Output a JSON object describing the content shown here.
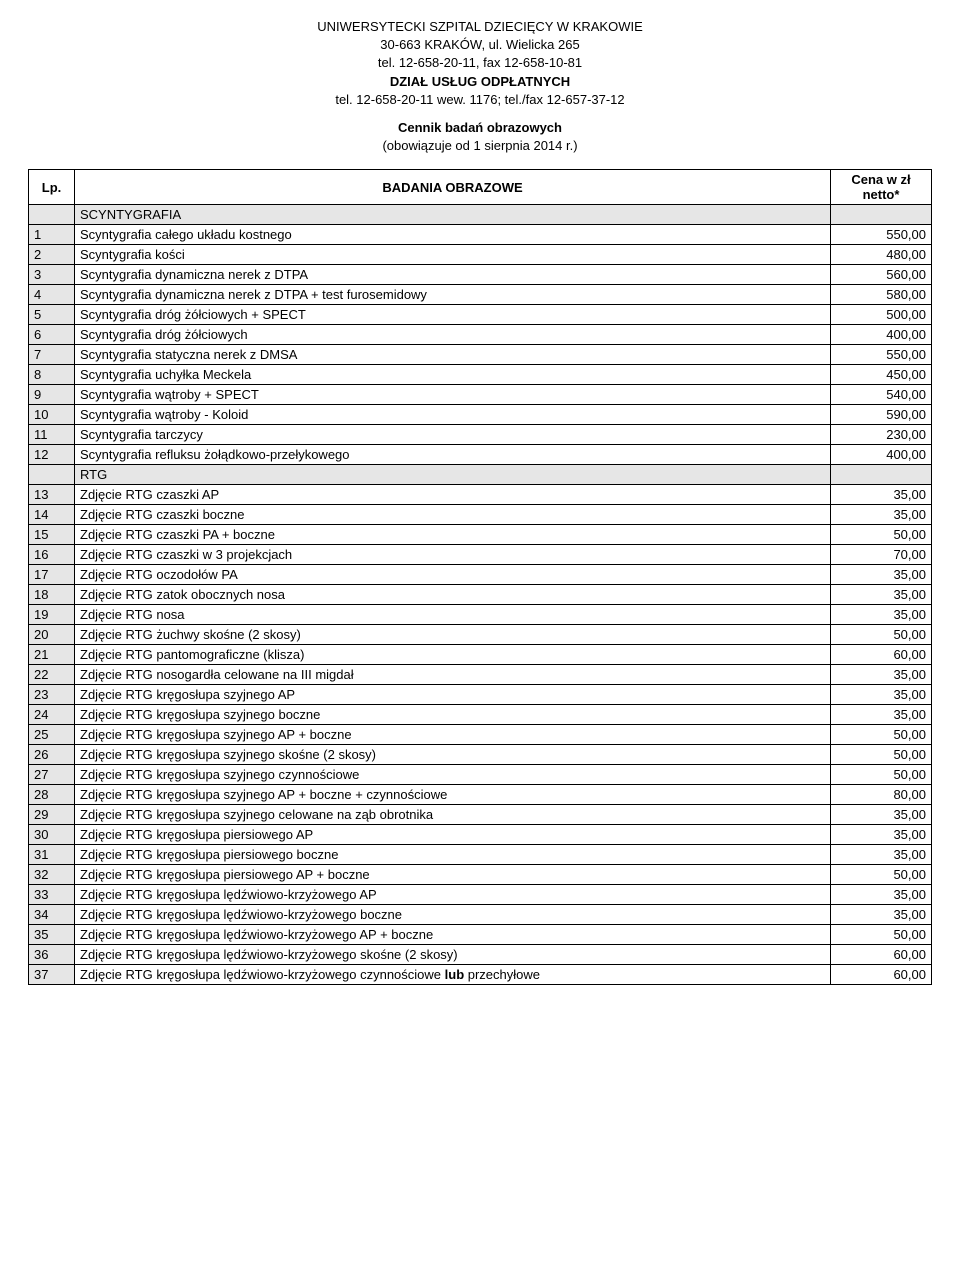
{
  "header": {
    "line1": "UNIWERSYTECKI SZPITAL DZIECIĘCY W KRAKOWIE",
    "line2": "30-663 KRAKÓW, ul. Wielicka 265",
    "line3": "tel. 12-658-20-11, fax 12-658-10-81",
    "line4": "DZIAŁ USŁUG ODPŁATNYCH",
    "line5": "tel. 12-658-20-11 wew. 1176; tel./fax 12-657-37-12",
    "title": "Cennik badań obrazowych",
    "subtitle": "(obowiązuje od 1 sierpnia 2014 r.)"
  },
  "table": {
    "col_lp": "Lp.",
    "col_name": "BADANIA OBRAZOWE",
    "col_price": "Cena w zł netto*",
    "rows": [
      {
        "num": "",
        "desc": "SCYNTYGRAFIA",
        "price": "",
        "section": true
      },
      {
        "num": "1",
        "desc": "Scyntygrafia całego układu kostnego",
        "price": "550,00"
      },
      {
        "num": "2",
        "desc": "Scyntygrafia kości",
        "price": "480,00"
      },
      {
        "num": "3",
        "desc": "Scyntygrafia dynamiczna nerek z DTPA",
        "price": "560,00"
      },
      {
        "num": "4",
        "desc": "Scyntygrafia dynamiczna nerek z DTPA + test furosemidowy",
        "price": "580,00"
      },
      {
        "num": "5",
        "desc": "Scyntygrafia dróg żółciowych + SPECT",
        "price": "500,00"
      },
      {
        "num": "6",
        "desc": "Scyntygrafia dróg żółciowych",
        "price": "400,00"
      },
      {
        "num": "7",
        "desc": "Scyntygrafia statyczna nerek z DMSA",
        "price": "550,00"
      },
      {
        "num": "8",
        "desc": "Scyntygrafia uchyłka Meckela",
        "price": "450,00"
      },
      {
        "num": "9",
        "desc": "Scyntygrafia wątroby + SPECT",
        "price": "540,00"
      },
      {
        "num": "10",
        "desc": "Scyntygrafia wątroby - Koloid",
        "price": "590,00"
      },
      {
        "num": "11",
        "desc": "Scyntygrafia tarczycy",
        "price": "230,00"
      },
      {
        "num": "12",
        "desc": "Scyntygrafia refluksu żołądkowo-przełykowego",
        "price": "400,00"
      },
      {
        "num": "",
        "desc": "RTG",
        "price": "",
        "section": true
      },
      {
        "num": "13",
        "desc": "Zdjęcie RTG czaszki AP",
        "price": "35,00"
      },
      {
        "num": "14",
        "desc": "Zdjęcie RTG czaszki boczne",
        "price": "35,00"
      },
      {
        "num": "15",
        "desc": "Zdjęcie RTG czaszki PA + boczne",
        "price": "50,00"
      },
      {
        "num": "16",
        "desc": "Zdjęcie RTG czaszki w 3 projekcjach",
        "price": "70,00"
      },
      {
        "num": "17",
        "desc": "Zdjęcie RTG oczodołów PA",
        "price": "35,00"
      },
      {
        "num": "18",
        "desc": "Zdjęcie RTG  zatok obocznych nosa",
        "price": "35,00"
      },
      {
        "num": "19",
        "desc": "Zdjęcie RTG  nosa",
        "price": "35,00"
      },
      {
        "num": "20",
        "desc": "Zdjęcie RTG  żuchwy skośne (2 skosy)",
        "price": "50,00"
      },
      {
        "num": "21",
        "desc": "Zdjęcie RTG  pantomograficzne (klisza)",
        "price": "60,00"
      },
      {
        "num": "22",
        "desc": "Zdjęcie RTG nosogardła celowane na III migdał",
        "price": "35,00"
      },
      {
        "num": "23",
        "desc": "Zdjęcie RTG kręgosłupa szyjnego AP",
        "price": "35,00"
      },
      {
        "num": "24",
        "desc": "Zdjęcie RTG kręgosłupa szyjnego boczne",
        "price": "35,00"
      },
      {
        "num": "25",
        "desc": "Zdjęcie RTG kręgosłupa szyjnego AP + boczne",
        "price": "50,00"
      },
      {
        "num": "26",
        "desc": "Zdjęcie RTG kręgosłupa szyjnego skośne (2 skosy)",
        "price": "50,00"
      },
      {
        "num": "27",
        "desc": "Zdjęcie RTG kręgosłupa szyjnego czynnościowe",
        "price": "50,00"
      },
      {
        "num": "28",
        "desc": "Zdjęcie RTG kręgosłupa szyjnego AP + boczne + czynnościowe",
        "price": "80,00"
      },
      {
        "num": "29",
        "desc": "Zdjęcie RTG kręgosłupa szyjnego celowane na ząb obrotnika",
        "price": "35,00"
      },
      {
        "num": "30",
        "desc": "Zdjęcie RTG kręgosłupa piersiowego AP",
        "price": "35,00"
      },
      {
        "num": "31",
        "desc": "Zdjęcie RTG kręgosłupa piersiowego boczne",
        "price": "35,00"
      },
      {
        "num": "32",
        "desc": "Zdjęcie RTG kręgosłupa piersiowego AP + boczne",
        "price": "50,00"
      },
      {
        "num": "33",
        "desc": "Zdjęcie RTG kręgosłupa lędźwiowo-krzyżowego AP",
        "price": "35,00"
      },
      {
        "num": "34",
        "desc": "Zdjęcie RTG kręgosłupa lędźwiowo-krzyżowego boczne",
        "price": "35,00"
      },
      {
        "num": "35",
        "desc": "Zdjęcie RTG kręgosłupa lędźwiowo-krzyżowego AP + boczne",
        "price": "50,00"
      },
      {
        "num": "36",
        "desc": "Zdjęcie RTG kręgosłupa lędźwiowo-krzyżowego skośne (2 skosy)",
        "price": "60,00"
      },
      {
        "num": "37",
        "desc": "Zdjęcie RTG kręgosłupa lędźwiowo-krzyżowego czynnościowe lub przechyłowe",
        "price": "60,00"
      }
    ]
  }
}
